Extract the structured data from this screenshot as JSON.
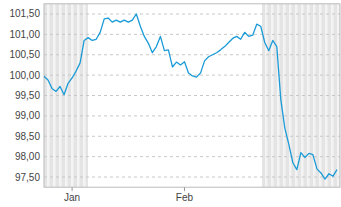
{
  "chart_data": {
    "type": "line",
    "categories": [
      null,
      null,
      null,
      null,
      null,
      null,
      null,
      "Jan",
      null,
      null,
      null,
      null,
      null,
      null,
      null,
      null,
      null,
      null,
      null,
      null,
      null,
      null,
      null,
      null,
      null,
      null,
      null,
      null,
      null,
      null,
      null,
      null,
      null,
      null,
      null,
      "Feb",
      null,
      null,
      null,
      null,
      null,
      null,
      null,
      null,
      null,
      null,
      null,
      null,
      null,
      null,
      null,
      null,
      null,
      null,
      null,
      null,
      null,
      null,
      null,
      null,
      null,
      null,
      null,
      null,
      null,
      null,
      null,
      null,
      null,
      null,
      null,
      null,
      null,
      null
    ],
    "values": [
      99.97,
      99.88,
      99.67,
      99.6,
      99.72,
      99.52,
      99.8,
      99.93,
      100.1,
      100.3,
      100.85,
      100.92,
      100.85,
      100.88,
      101.05,
      101.38,
      101.4,
      101.3,
      101.35,
      101.3,
      101.35,
      101.3,
      101.35,
      101.5,
      101.2,
      100.95,
      100.78,
      100.55,
      100.7,
      100.95,
      100.6,
      100.62,
      100.2,
      100.32,
      100.25,
      100.33,
      100.05,
      99.98,
      99.95,
      100.05,
      100.35,
      100.45,
      100.5,
      100.55,
      100.62,
      100.7,
      100.8,
      100.9,
      100.95,
      100.88,
      101.05,
      100.95,
      100.98,
      101.25,
      101.2,
      100.8,
      100.6,
      100.85,
      100.7,
      99.4,
      98.7,
      98.3,
      97.85,
      97.68,
      98.1,
      97.98,
      98.08,
      98.05,
      97.7,
      97.6,
      97.45,
      97.58,
      97.52,
      97.68
    ],
    "color": "#1a9bd7",
    "ylim": [
      97.25,
      101.75
    ],
    "yticks": [
      {
        "value": 97.5,
        "label": "97,50"
      },
      {
        "value": 98,
        "label": "98,00"
      },
      {
        "value": 98.5,
        "label": "98,50"
      },
      {
        "value": 99,
        "label": "99,00"
      },
      {
        "value": 99.5,
        "label": "99,50"
      },
      {
        "value": 100,
        "label": "100,00"
      },
      {
        "value": 100.5,
        "label": "100,50"
      },
      {
        "value": 101,
        "label": "101,00"
      },
      {
        "value": 101.5,
        "label": "101,50"
      }
    ],
    "grid": true
  }
}
